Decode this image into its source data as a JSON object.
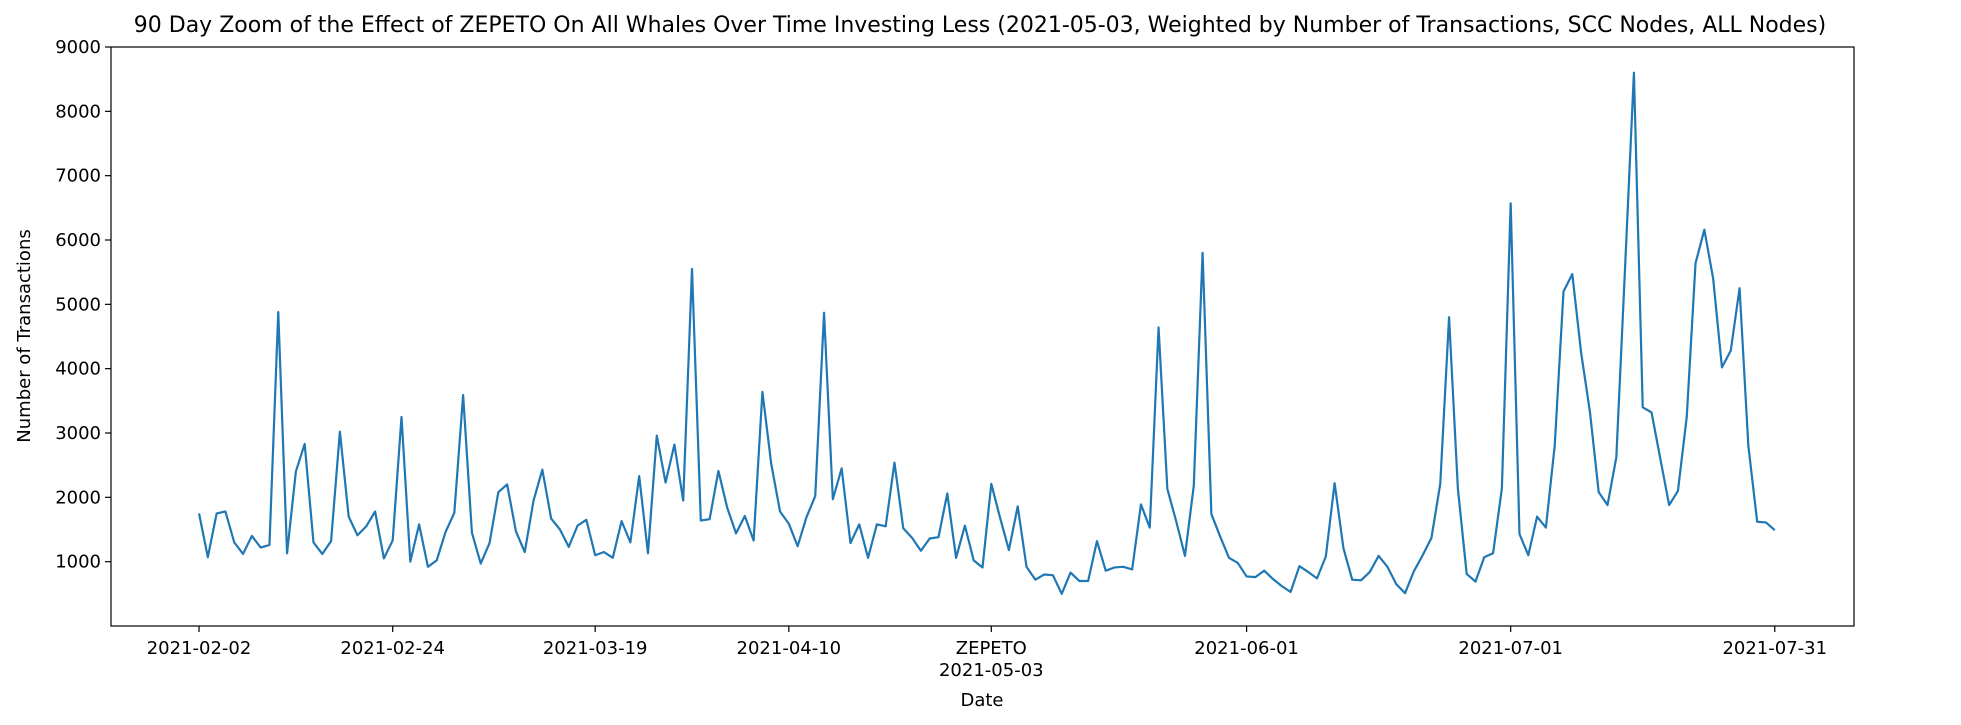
{
  "chart_data": {
    "type": "line",
    "title": "90 Day Zoom of the Effect of ZEPETO On All Whales Over Time Investing Less (2021-05-03, Weighted by Number of Transactions, SCC Nodes, ALL Nodes)",
    "xlabel": "Date",
    "ylabel": "Number of Transactions",
    "ylim": [
      0,
      9000
    ],
    "xlim": [
      "2021-01-23",
      "2021-08-09"
    ],
    "grid": false,
    "line_color": "#1f77b4",
    "y_ticks": [
      1000,
      2000,
      3000,
      4000,
      5000,
      6000,
      7000,
      8000,
      9000
    ],
    "x_ticks": [
      {
        "date": "2021-02-02",
        "label": "2021-02-02"
      },
      {
        "date": "2021-02-24",
        "label": "2021-02-24"
      },
      {
        "date": "2021-03-19",
        "label": "2021-03-19"
      },
      {
        "date": "2021-04-10",
        "label": "2021-04-10"
      },
      {
        "date": "2021-05-03",
        "label": "2021-05-03"
      },
      {
        "date": "2021-06-01",
        "label": "2021-06-01"
      },
      {
        "date": "2021-07-01",
        "label": "2021-07-01"
      },
      {
        "date": "2021-07-31",
        "label": "2021-07-31"
      }
    ],
    "event": {
      "date": "2021-05-03",
      "label": "ZEPETO"
    },
    "series": [
      {
        "x_start": "2021-02-02",
        "x_end": "2021-07-31",
        "values": [
          1750,
          1070,
          1750,
          1780,
          1300,
          1120,
          1400,
          1220,
          1260,
          4880,
          1130,
          2400,
          2830,
          1300,
          1120,
          1320,
          3020,
          1700,
          1410,
          1550,
          1780,
          1050,
          1330,
          3250,
          1000,
          1580,
          920,
          1020,
          1460,
          1760,
          3590,
          1450,
          970,
          1290,
          2080,
          2200,
          1470,
          1150,
          1950,
          2430,
          1670,
          1500,
          1230,
          1560,
          1650,
          1100,
          1150,
          1060,
          1630,
          1300,
          2330,
          1130,
          2960,
          2230,
          2820,
          1950,
          5550,
          1640,
          1660,
          2410,
          1840,
          1440,
          1710,
          1330,
          3640,
          2520,
          1780,
          1590,
          1240,
          1690,
          2020,
          4870,
          1970,
          2450,
          1290,
          1580,
          1060,
          1580,
          1550,
          2540,
          1520,
          1370,
          1170,
          1360,
          1380,
          2060,
          1060,
          1560,
          1020,
          910,
          2210,
          1680,
          1180,
          1860,
          920,
          720,
          800,
          790,
          500,
          830,
          700,
          700,
          1320,
          860,
          910,
          920,
          880,
          1890,
          1530,
          4640,
          2130,
          1630,
          1090,
          2180,
          5800,
          1740,
          1390,
          1060,
          980,
          770,
          760,
          860,
          730,
          620,
          530,
          930,
          840,
          740,
          1080,
          2220,
          1210,
          720,
          710,
          840,
          1090,
          920,
          650,
          510,
          850,
          1100,
          1370,
          2210,
          4800,
          2140,
          810,
          690,
          1070,
          1130,
          2140,
          6570,
          1430,
          1100,
          1700,
          1530,
          2800,
          5200,
          5470,
          4250,
          3330,
          2080,
          1880,
          2620,
          5590,
          8600,
          3400,
          3320,
          2600,
          1880,
          2100,
          3250,
          5640,
          6160,
          5400,
          4020,
          4280,
          5250,
          2800,
          1620,
          1610,
          1490
        ]
      }
    ]
  }
}
